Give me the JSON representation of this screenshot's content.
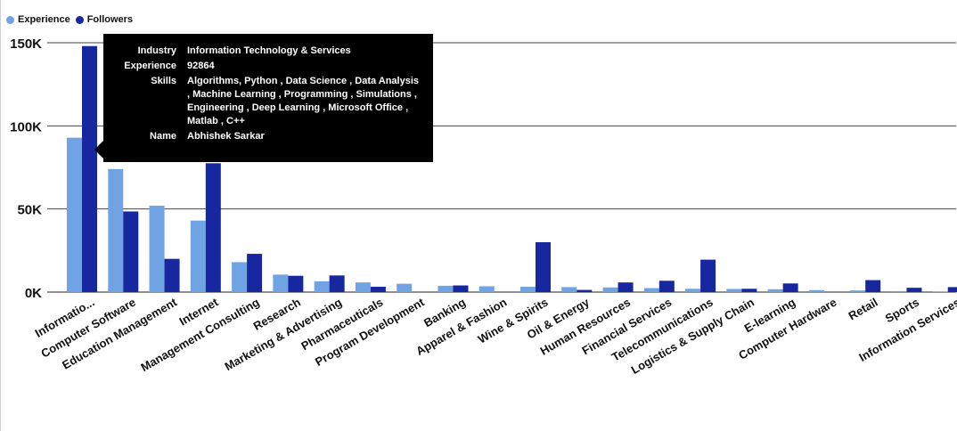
{
  "chart_data": {
    "type": "bar",
    "categories": [
      "Informatio...",
      "Computer Software",
      "Education Management",
      "Internet",
      "Management Consulting",
      "Research",
      "Marketing & Advertising",
      "Pharmaceuticals",
      "Program Development",
      "Banking",
      "Apparel & Fashion",
      "Wine & Spirits",
      "Oil & Energy",
      "Human Resources",
      "Financial Services",
      "Telecommunications",
      "Logistics & Supply Chain",
      "E-learning",
      "Computer Hardware",
      "Retail",
      "Sports",
      "Information Services"
    ],
    "series": [
      {
        "name": "Experience",
        "color": "#6fa3e3",
        "values": [
          92864,
          74000,
          52000,
          43000,
          18000,
          10500,
          6500,
          5800,
          5000,
          3800,
          3500,
          3200,
          3000,
          2800,
          2400,
          2000,
          1900,
          1700,
          1200,
          1000,
          600,
          400
        ]
      },
      {
        "name": "Followers",
        "color": "#1627a0",
        "values": [
          148000,
          48500,
          20000,
          77500,
          23000,
          9800,
          10000,
          3200,
          0,
          4000,
          0,
          30000,
          1300,
          5800,
          6800,
          19500,
          2000,
          5200,
          0,
          7200,
          2600,
          3000
        ]
      }
    ],
    "y_ticks": [
      "0K",
      "50K",
      "100K",
      "150K"
    ],
    "ylim": [
      0,
      160000
    ],
    "grid": true,
    "legend_position": "top-left"
  },
  "legend": {
    "experience": "Experience",
    "followers": "Followers"
  },
  "tooltip": {
    "industry_label": "Industry",
    "industry_value": "Information Technology & Services",
    "experience_label": "Experience",
    "experience_value": "92864",
    "skills_label": "Skills",
    "skills_value": "Algorithms, Python , Data Science , Data Analysis , Machine Learning , Programming , Simulations , Engineering , Deep Learning , Microsoft Office , Matlab , C++",
    "name_label": "Name",
    "name_value": "Abhishek Sarkar"
  }
}
